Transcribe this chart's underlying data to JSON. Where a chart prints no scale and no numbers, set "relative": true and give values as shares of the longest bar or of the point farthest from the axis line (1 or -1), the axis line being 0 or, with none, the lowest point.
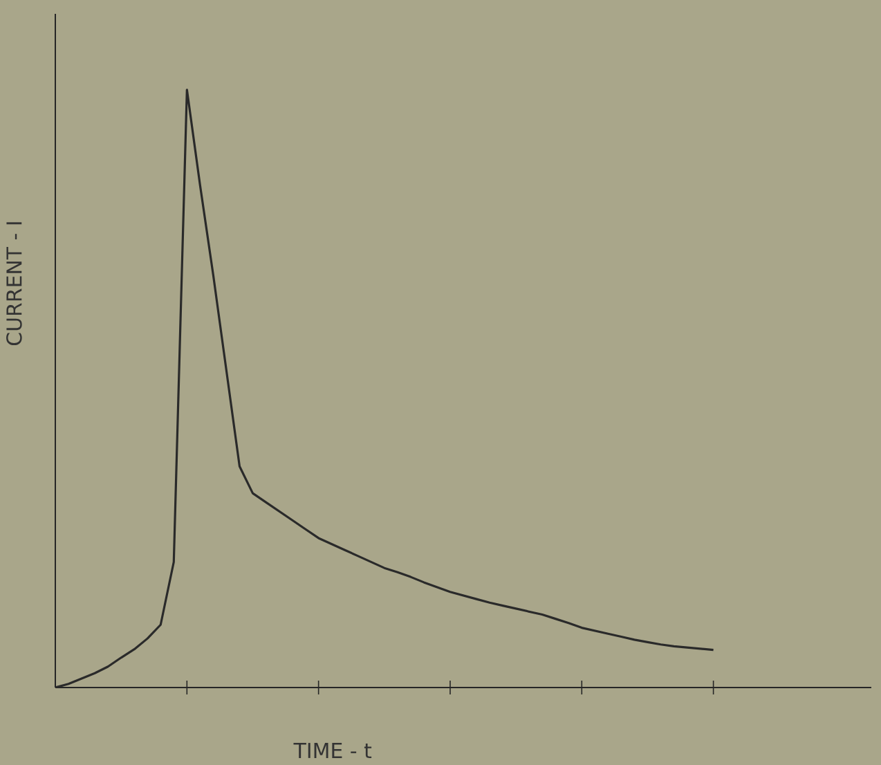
{
  "chart_data": {
    "type": "line",
    "relative": true,
    "xlabel": "TIME - t",
    "ylabel": "CURRENT - I",
    "categories": [
      null,
      null,
      null,
      null,
      null,
      null,
      null,
      null,
      null,
      null,
      null,
      null,
      null,
      null,
      null,
      null,
      null,
      null,
      null,
      null,
      null,
      null,
      null,
      null,
      null,
      null,
      null,
      null,
      null,
      null,
      null,
      null,
      null,
      null,
      null,
      null,
      null,
      null,
      null,
      null,
      null,
      null,
      null,
      null,
      null,
      null,
      null,
      null,
      null,
      null,
      null
    ],
    "values": [
      0,
      0.006,
      0.015,
      0.024,
      0.035,
      0.05,
      0.064,
      0.082,
      0.105,
      0.21,
      1,
      0.84,
      0.69,
      0.53,
      0.37,
      0.325,
      0.31,
      0.295,
      0.28,
      0.265,
      0.25,
      0.24,
      0.23,
      0.22,
      0.21,
      0.2,
      0.193,
      0.185,
      0.176,
      0.168,
      0.16,
      0.154,
      0.148,
      0.142,
      0.137,
      0.132,
      0.127,
      0.122,
      0.115,
      0.108,
      0.1,
      0.095,
      0.09,
      0.085,
      0.08,
      0.076,
      0.072,
      0.069,
      0.067,
      0.065,
      0.063
    ],
    "color": "#2a2a2a",
    "marker": "none",
    "line_style": "solid"
  }
}
